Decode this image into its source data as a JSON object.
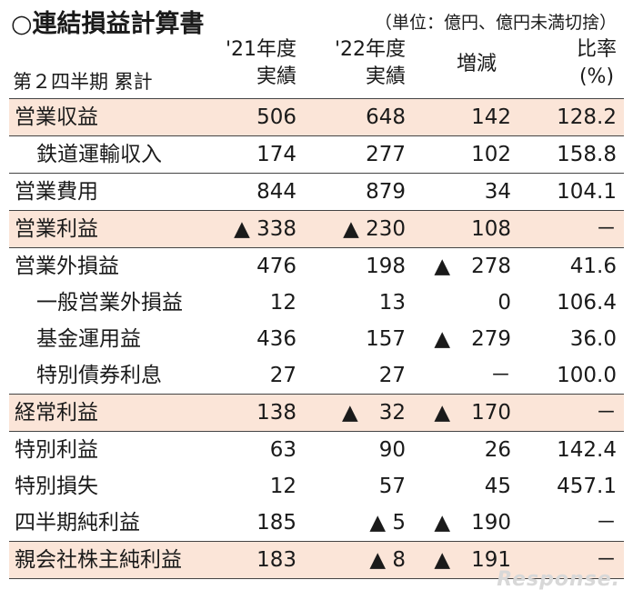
{
  "title": "○連結損益計算書",
  "unit_note": "（単位：億円、億円未満切捨）",
  "headers": {
    "period": "第２四半期 累計",
    "col1": [
      "'21年度",
      "実績"
    ],
    "col2": [
      "'22年度",
      "実績"
    ],
    "col3": "増減",
    "col4": [
      "比率",
      "(%)"
    ]
  },
  "rows": [
    {
      "label": "営業収益",
      "v1": "506",
      "v2": "648",
      "v3": "142",
      "v4": "128.2"
    },
    {
      "label": "鉄道運輸収入",
      "v1": "174",
      "v2": "277",
      "v3": "102",
      "v4": "158.8"
    },
    {
      "label": "営業費用",
      "v1": "844",
      "v2": "879",
      "v3": "34",
      "v4": "104.1"
    },
    {
      "label": "営業利益",
      "v1": "▲ 338",
      "v2": "▲ 230",
      "v3": "108",
      "v4": "－"
    },
    {
      "label": "営業外損益",
      "v1": "476",
      "v2": "198",
      "v3": "▲　278",
      "v4": "41.6"
    },
    {
      "label": "一般営業外損益",
      "v1": "12",
      "v2": "13",
      "v3": "0",
      "v4": "106.4"
    },
    {
      "label": "基金運用益",
      "v1": "436",
      "v2": "157",
      "v3": "▲　279",
      "v4": "36.0"
    },
    {
      "label": "特別債券利息",
      "v1": "27",
      "v2": "27",
      "v3": "－",
      "v4": "100.0"
    },
    {
      "label": "経常利益",
      "v1": "138",
      "v2": "▲　32",
      "v3": "▲　170",
      "v4": "－"
    },
    {
      "label": "特別利益",
      "v1": "63",
      "v2": "90",
      "v3": "26",
      "v4": "142.4"
    },
    {
      "label": "特別損失",
      "v1": "12",
      "v2": "57",
      "v3": "45",
      "v4": "457.1"
    },
    {
      "label": "四半期純利益",
      "v1": "185",
      "v2": "▲ 5",
      "v3": "▲　190",
      "v4": "－"
    },
    {
      "label": "親会社株主純利益",
      "v1": "183",
      "v2": "▲ 8",
      "v3": "▲　191",
      "v4": "－"
    }
  ],
  "watermark": "Response."
}
